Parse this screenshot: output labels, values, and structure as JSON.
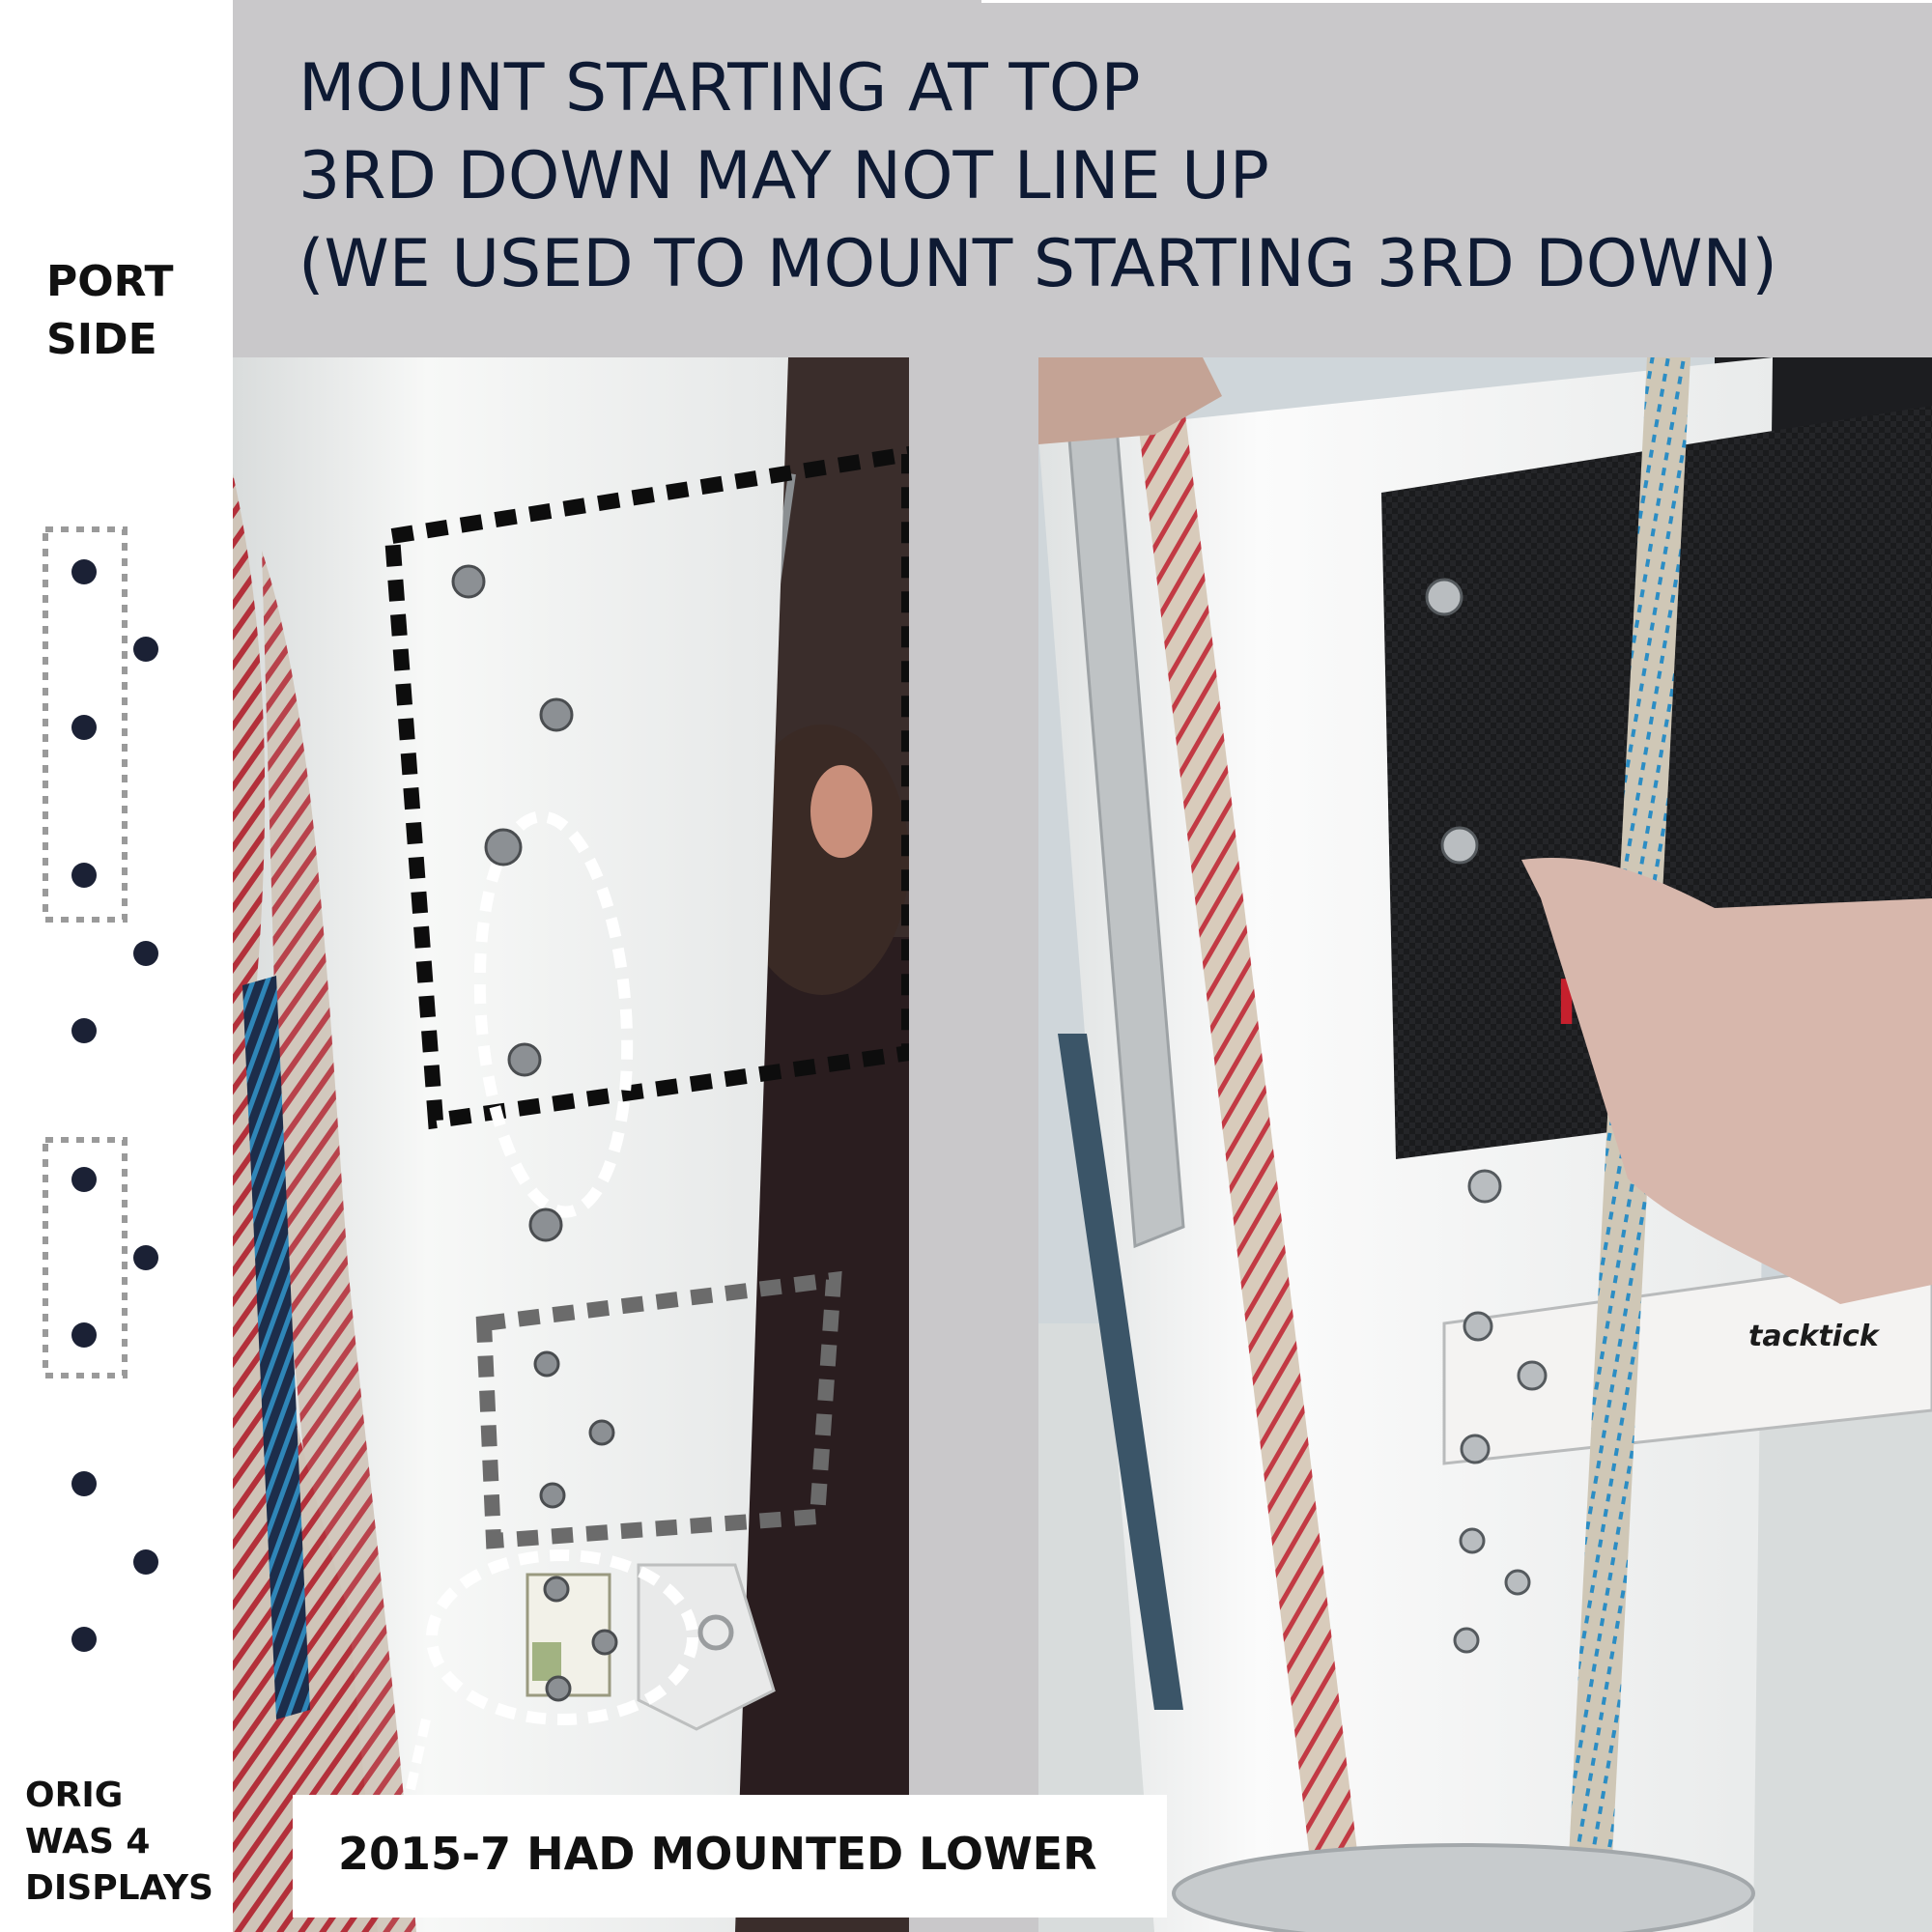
{
  "header": {
    "lines": [
      "MOUNT STARTING AT TOP",
      "3RD DOWN MAY NOT LINE UP",
      "(WE USED TO MOUNT STARTING 3RD DOWN)"
    ]
  },
  "sidebar": {
    "port_side": [
      "PORT",
      "SIDE"
    ],
    "orig_note": [
      "ORIG",
      "WAS 4",
      "DISPLAYS"
    ]
  },
  "caption": "2015-7 HAD MOUNTED LOWER",
  "photo_right": {
    "logo_text": "tacktick"
  },
  "colors": {
    "background": "#c9c8ca",
    "title_text": "#0e1a33",
    "dot": "#1b2135",
    "mast": "#f4f5f4",
    "display_panel": "#1a1b1d"
  }
}
